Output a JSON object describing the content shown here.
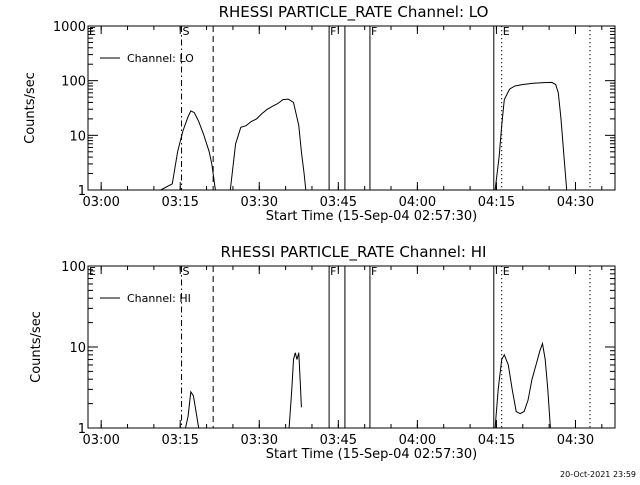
{
  "footer_timestamp": "20-Oct-2021 23:59",
  "chart_data": [
    {
      "type": "line",
      "title": "RHESSI PARTICLE_RATE Channel: LO",
      "xlabel": "Start Time (15-Sep-04 02:57:30)",
      "ylabel": "Counts/sec",
      "y_scale": "log",
      "xlim": [
        "02:57:30",
        "04:37:30"
      ],
      "ylim": [
        1,
        1000
      ],
      "x_tick_labels": [
        "03:00",
        "03:15",
        "03:30",
        "03:45",
        "04:00",
        "04:15",
        "04:30"
      ],
      "y_tick_labels": [
        "1",
        "10",
        "100",
        "1000"
      ],
      "legend_position": "top-left",
      "series": [
        {
          "name": "Channel: LO",
          "segments": [
            [
              [
                "03:11:18",
                1
              ],
              [
                "03:13:30",
                1.3
              ],
              [
                "03:14:30",
                5
              ],
              [
                "03:15:30",
                12
              ],
              [
                "03:16:30",
                22
              ],
              [
                "03:17:00",
                28
              ],
              [
                "03:17:40",
                26
              ],
              [
                "03:18:30",
                18
              ],
              [
                "03:19:30",
                10
              ],
              [
                "03:20:30",
                5
              ],
              [
                "03:21:00",
                3
              ],
              [
                "03:21:40",
                1
              ]
            ],
            [
              [
                "03:24:30",
                1
              ],
              [
                "03:25:30",
                7
              ],
              [
                "03:26:30",
                14
              ],
              [
                "03:27:30",
                15
              ],
              [
                "03:28:30",
                18
              ],
              [
                "03:29:30",
                20
              ],
              [
                "03:30:30",
                25
              ],
              [
                "03:31:30",
                30
              ],
              [
                "03:32:30",
                34
              ],
              [
                "03:33:30",
                38
              ],
              [
                "03:34:30",
                45
              ],
              [
                "03:35:30",
                46
              ],
              [
                "03:36:30",
                40
              ],
              [
                "03:37:30",
                15
              ],
              [
                "03:38:00",
                5
              ],
              [
                "03:38:30",
                2
              ],
              [
                "03:38:50",
                1
              ]
            ],
            [
              [
                "04:14:45",
                1
              ],
              [
                "04:15:30",
                4
              ],
              [
                "04:16:00",
                15
              ],
              [
                "04:16:30",
                45
              ],
              [
                "04:17:30",
                70
              ],
              [
                "04:18:30",
                80
              ],
              [
                "04:20:00",
                85
              ],
              [
                "04:22:00",
                90
              ],
              [
                "04:24:00",
                92
              ],
              [
                "04:25:30",
                93
              ],
              [
                "04:26:15",
                85
              ],
              [
                "04:26:45",
                60
              ],
              [
                "04:27:15",
                20
              ],
              [
                "04:27:45",
                5
              ],
              [
                "04:28:20",
                1
              ]
            ]
          ]
        }
      ],
      "vertical_markers": [
        {
          "label": "E",
          "time": "02:57:30",
          "style": "solid"
        },
        {
          "label": "S",
          "time": "03:15:15",
          "style": "dash-dot"
        },
        {
          "label": "",
          "time": "03:21:15",
          "style": "dashed"
        },
        {
          "label": "F",
          "time": "03:43:15",
          "style": "solid"
        },
        {
          "label": "",
          "time": "03:46:15",
          "style": "solid"
        },
        {
          "label": "F",
          "time": "03:51:00",
          "style": "solid"
        },
        {
          "label": "",
          "time": "04:14:30",
          "style": "solid"
        },
        {
          "label": "E",
          "time": "04:16:00",
          "style": "dotted"
        },
        {
          "label": "",
          "time": "04:32:45",
          "style": "dotted"
        }
      ]
    },
    {
      "type": "line",
      "title": "RHESSI PARTICLE_RATE Channel: HI",
      "xlabel": "Start Time (15-Sep-04 02:57:30)",
      "ylabel": "Counts/sec",
      "y_scale": "log",
      "xlim": [
        "02:57:30",
        "04:37:30"
      ],
      "ylim": [
        1,
        100
      ],
      "x_tick_labels": [
        "03:00",
        "03:15",
        "03:30",
        "03:45",
        "04:00",
        "04:15",
        "04:30"
      ],
      "y_tick_labels": [
        "1",
        "10",
        "100"
      ],
      "legend_position": "top-left",
      "series": [
        {
          "name": "Channel: HI",
          "segments": [
            [
              [
                "03:16:00",
                1
              ],
              [
                "03:16:30",
                1.4
              ],
              [
                "03:17:00",
                2.8
              ],
              [
                "03:17:30",
                2.5
              ],
              [
                "03:18:00",
                1.6
              ],
              [
                "03:18:30",
                1
              ]
            ],
            [
              [
                "03:35:40",
                1
              ],
              [
                "03:36:10",
                3
              ],
              [
                "03:36:30",
                7
              ],
              [
                "03:36:50",
                8.5
              ],
              [
                "03:37:10",
                7
              ],
              [
                "03:37:30",
                8.5
              ],
              [
                "03:37:50",
                3
              ],
              [
                "03:38:00",
                1.8
              ]
            ],
            [
              [
                "04:14:45",
                1
              ],
              [
                "04:15:20",
                3
              ],
              [
                "04:16:00",
                7
              ],
              [
                "04:16:30",
                8
              ],
              [
                "04:17:15",
                6
              ],
              [
                "04:18:00",
                3
              ],
              [
                "04:18:45",
                1.6
              ],
              [
                "04:19:30",
                1.5
              ],
              [
                "04:20:15",
                1.6
              ],
              [
                "04:21:00",
                2.2
              ],
              [
                "04:21:45",
                4
              ],
              [
                "04:22:30",
                6
              ],
              [
                "04:23:15",
                9
              ],
              [
                "04:23:45",
                11
              ],
              [
                "04:24:15",
                7
              ],
              [
                "04:24:45",
                3
              ],
              [
                "04:25:15",
                1
              ]
            ]
          ]
        }
      ],
      "vertical_markers": [
        {
          "label": "E",
          "time": "02:57:30",
          "style": "solid"
        },
        {
          "label": "S",
          "time": "03:15:15",
          "style": "dash-dot"
        },
        {
          "label": "",
          "time": "03:21:15",
          "style": "dashed"
        },
        {
          "label": "F",
          "time": "03:43:15",
          "style": "solid"
        },
        {
          "label": "",
          "time": "03:46:15",
          "style": "solid"
        },
        {
          "label": "F",
          "time": "03:51:00",
          "style": "solid"
        },
        {
          "label": "",
          "time": "04:14:30",
          "style": "solid"
        },
        {
          "label": "E",
          "time": "04:16:00",
          "style": "dotted"
        },
        {
          "label": "",
          "time": "04:32:45",
          "style": "dotted"
        }
      ]
    }
  ]
}
